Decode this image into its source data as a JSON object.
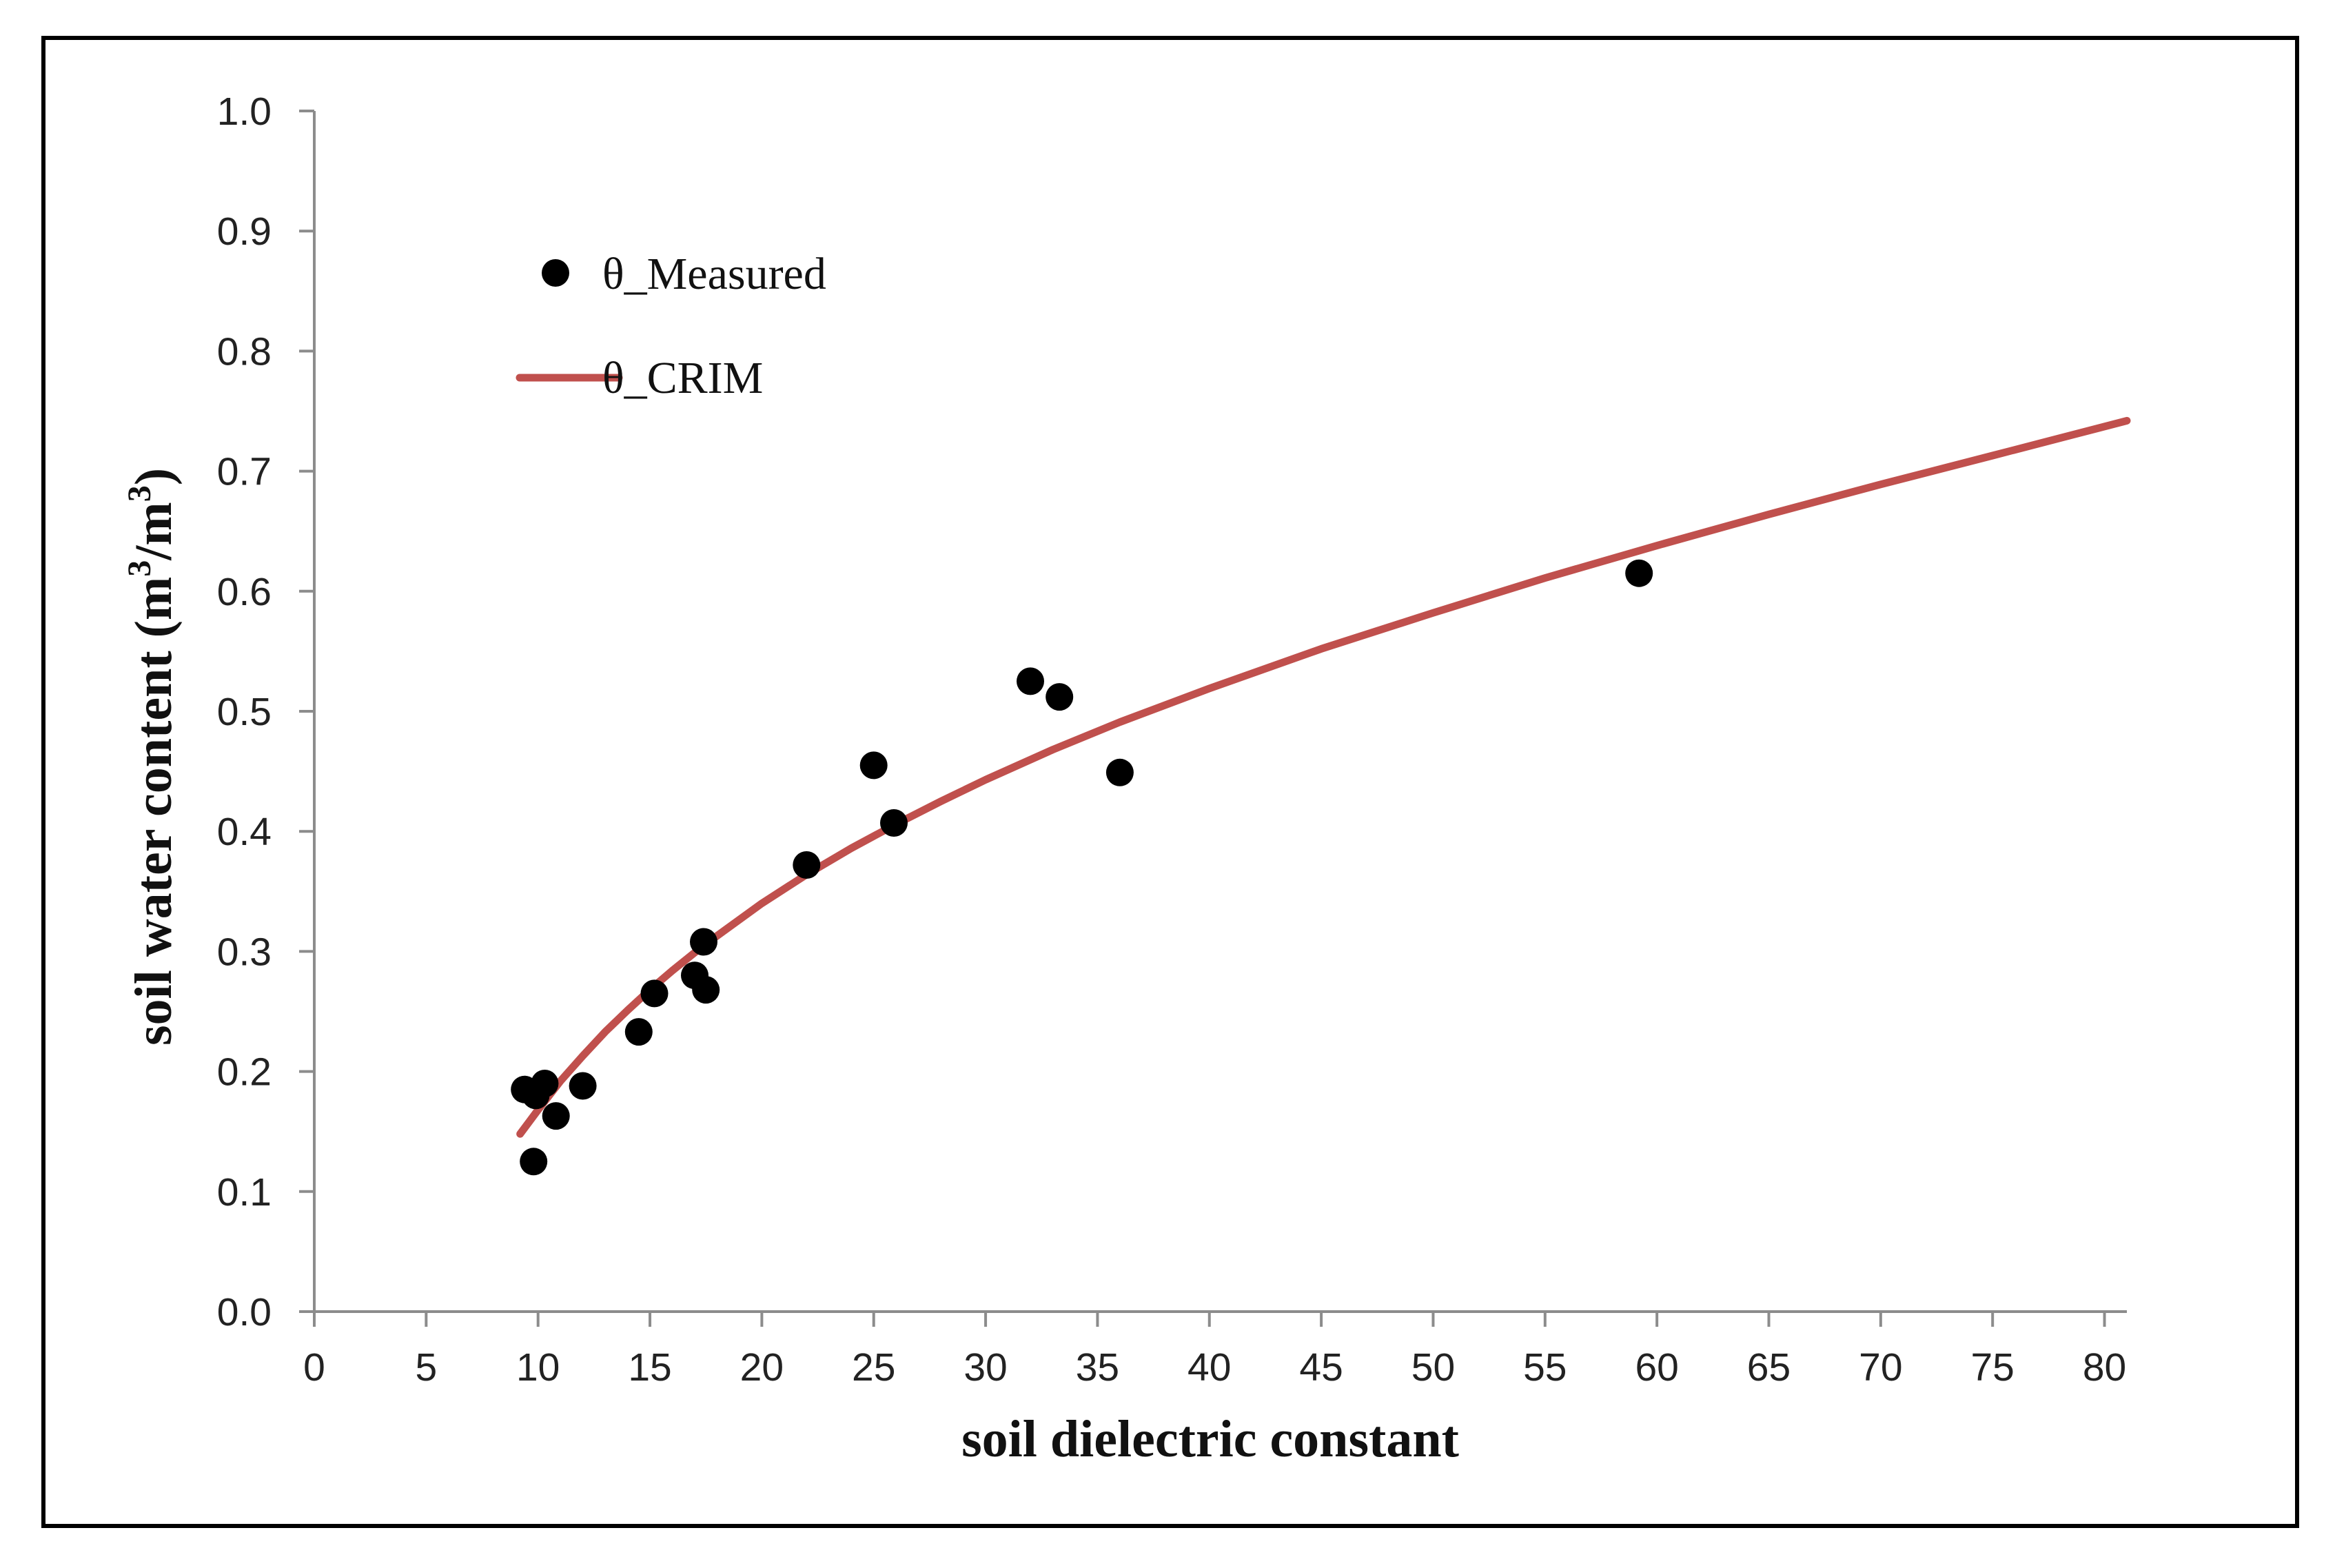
{
  "chart_data": {
    "type": "scatter",
    "title": "",
    "xlabel": "soil dielectric constant",
    "ylabel": "soil water content (m",
    "ylabel_sup1": "3",
    "ylabel_mid": "/m",
    "ylabel_sup2": "3",
    "ylabel_end": ")",
    "xlim": [
      0,
      81
    ],
    "ylim": [
      0,
      1.0
    ],
    "x_ticks": [
      0,
      5,
      10,
      15,
      20,
      25,
      30,
      35,
      40,
      45,
      50,
      55,
      60,
      65,
      70,
      75,
      80
    ],
    "x_tick_labels": [
      "0",
      "5",
      "10",
      "15",
      "20",
      "25",
      "30",
      "35",
      "40",
      "45",
      "50",
      "55",
      "60",
      "65",
      "70",
      "75",
      "80"
    ],
    "y_ticks": [
      0,
      0.1,
      0.2,
      0.3,
      0.4,
      0.5,
      0.6,
      0.7,
      0.8,
      0.9,
      1.0
    ],
    "y_tick_labels": [
      "0.0",
      "0.1",
      "0.2",
      "0.3",
      "0.4",
      "0.5",
      "0.6",
      "0.7",
      "0.8",
      "0.9",
      "1.0"
    ],
    "grid": false,
    "legend_position": "top-left",
    "series": [
      {
        "name": "θ_Measured",
        "kind": "scatter",
        "color": "#000000",
        "x": [
          9.4,
          9.9,
          10.3,
          9.8,
          10.8,
          12.0,
          14.5,
          15.2,
          17.0,
          17.4,
          17.5,
          22.0,
          25.0,
          25.9,
          32.0,
          33.3,
          36.0,
          59.2
        ],
        "y": [
          0.185,
          0.18,
          0.19,
          0.125,
          0.163,
          0.188,
          0.233,
          0.265,
          0.28,
          0.308,
          0.268,
          0.372,
          0.455,
          0.407,
          0.525,
          0.512,
          0.449,
          0.615
        ]
      },
      {
        "name": "θ_CRIM",
        "kind": "line",
        "color": "#c0504d",
        "x": [
          9.2,
          10,
          11,
          12,
          13,
          14,
          15,
          16,
          17,
          18,
          20,
          22,
          24,
          26,
          28,
          30,
          33,
          36,
          40,
          45,
          50,
          55,
          60,
          65,
          70,
          75,
          81
        ],
        "y": [
          0.148,
          0.168,
          0.192,
          0.213,
          0.233,
          0.251,
          0.268,
          0.284,
          0.299,
          0.313,
          0.34,
          0.364,
          0.386,
          0.406,
          0.425,
          0.443,
          0.468,
          0.491,
          0.519,
          0.552,
          0.582,
          0.611,
          0.638,
          0.664,
          0.689,
          0.713,
          0.742
        ]
      }
    ]
  }
}
